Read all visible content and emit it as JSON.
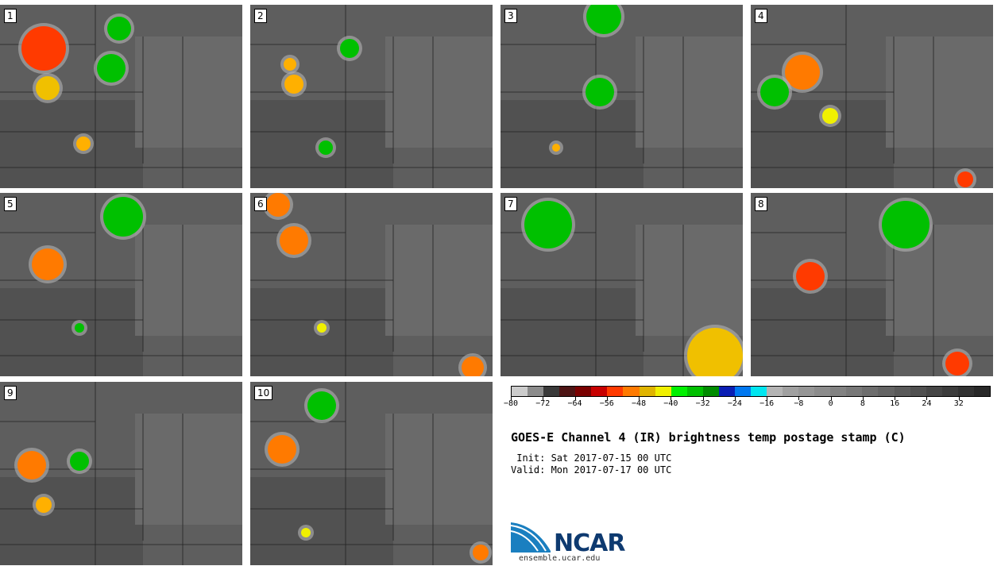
{
  "panels": [
    {
      "label": "1"
    },
    {
      "label": "2"
    },
    {
      "label": "3"
    },
    {
      "label": "4"
    },
    {
      "label": "5"
    },
    {
      "label": "6"
    },
    {
      "label": "7"
    },
    {
      "label": "8"
    },
    {
      "label": "9"
    },
    {
      "label": "10"
    }
  ],
  "colorbar": {
    "colors": [
      "#cccccc",
      "#8c8c8c",
      "#3a3a3a",
      "#4d1414",
      "#7a0000",
      "#c80000",
      "#ff3a00",
      "#ff7a00",
      "#e0b400",
      "#f0f000",
      "#00f000",
      "#00c000",
      "#008c00",
      "#0a1eb4",
      "#0078f0",
      "#00e6f0",
      "#b4b4b4",
      "#a0a0a0",
      "#969696",
      "#8c8c8c",
      "#828282",
      "#787878",
      "#6e6e6e",
      "#646464",
      "#5a5a5a",
      "#505050",
      "#464646",
      "#3c3c3c",
      "#323232",
      "#282828"
    ],
    "tick_labels": [
      "−80",
      "−72",
      "−64",
      "−56",
      "−48",
      "−40",
      "−32",
      "−24",
      "−16",
      "−8",
      "0",
      "8",
      "16",
      "24",
      "32"
    ]
  },
  "title": "GOES-E Channel 4 (IR) brightness temp postage stamp (C)",
  "init_line": " Init: Sat 2017-07-15 00 UTC",
  "valid_line": "Valid: Mon 2017-07-17 00 UTC",
  "logo_text": "NCAR",
  "url": "ensemble.ucar.edu"
}
